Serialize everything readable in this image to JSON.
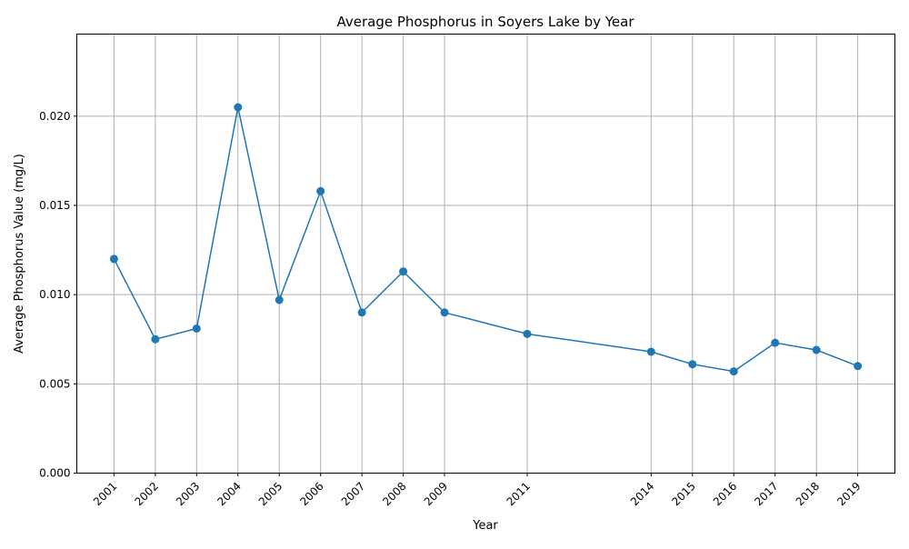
{
  "chart_data": {
    "type": "line",
    "title": "Average Phosphorus in Soyers Lake by Year",
    "xlabel": "Year",
    "ylabel": "Average Phosphorus Value (mg/L)",
    "x": [
      2001,
      2002,
      2003,
      2004,
      2005,
      2006,
      2007,
      2008,
      2009,
      2011,
      2014,
      2015,
      2016,
      2017,
      2018,
      2019
    ],
    "x_tick_labels": [
      "2001",
      "2002",
      "2003",
      "2004",
      "2005",
      "2006",
      "2007",
      "2008",
      "2009",
      "2011",
      "2014",
      "2015",
      "2016",
      "2017",
      "2018",
      "2019"
    ],
    "y_ticks": [
      0.0,
      0.005,
      0.01,
      0.015,
      0.02
    ],
    "y_tick_labels": [
      "0.000",
      "0.005",
      "0.010",
      "0.015",
      "0.020"
    ],
    "series": [
      {
        "values": [
          0.012,
          0.0075,
          0.0081,
          0.0205,
          0.0097,
          0.0158,
          0.009,
          0.0113,
          0.009,
          0.0078,
          0.0068,
          0.0061,
          0.0057,
          0.0073,
          0.0069,
          0.006
        ],
        "color": "#1f77b4",
        "marker": "circle"
      }
    ],
    "xlim": [
      2000.1,
      2019.9
    ],
    "ylim": [
      0,
      0.0246
    ],
    "grid": true,
    "legend": "none"
  }
}
